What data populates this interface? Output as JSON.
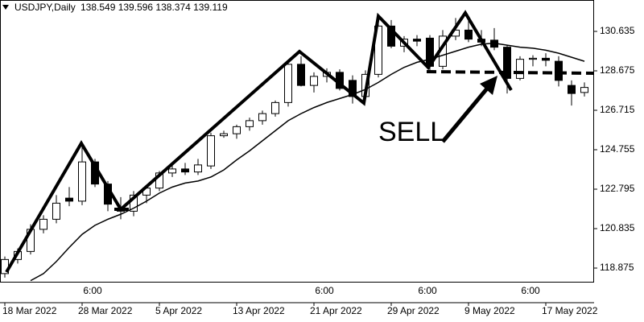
{
  "chart_data": {
    "type": "candlestick",
    "title": "USDJPY,Daily",
    "subtitle": "138.549 139.596 138.374 139.119",
    "categories": [
      "18 Mar 2022",
      null,
      null,
      null,
      null,
      null,
      "28 Mar 2022",
      null,
      null,
      null,
      null,
      null,
      "5 Apr 2022",
      null,
      null,
      null,
      null,
      null,
      "13 Apr 2022",
      null,
      null,
      null,
      null,
      null,
      "21 Apr 2022",
      null,
      null,
      null,
      null,
      null,
      "29 Apr 2022",
      null,
      null,
      null,
      null,
      null,
      "9 May 2022",
      null,
      null,
      null,
      null,
      null,
      "17 May 2022",
      null,
      null,
      null
    ],
    "open": [
      118.6,
      119.3,
      119.7,
      120.8,
      121.3,
      122.35,
      122.2,
      124.15,
      123.05,
      121.75,
      121.7,
      122.5,
      122.85,
      123.6,
      123.8,
      123.65,
      123.95,
      125.45,
      125.55,
      125.9,
      126.2,
      126.55,
      127.1,
      129.0,
      127.95,
      128.4,
      128.6,
      128.2,
      127.4,
      128.5,
      130.9,
      129.9,
      130.25,
      130.3,
      128.9,
      130.4,
      130.7,
      130.25,
      130.2,
      129.85,
      128.3,
      129.25,
      129.3,
      129.15,
      127.95,
      127.6
    ],
    "high": [
      119.45,
      119.85,
      121.05,
      121.5,
      122.5,
      122.9,
      125.1,
      124.3,
      123.2,
      122.4,
      122.7,
      123.0,
      123.7,
      124.0,
      124.1,
      124.3,
      125.6,
      125.7,
      126.0,
      126.35,
      126.7,
      127.2,
      129.1,
      129.4,
      128.6,
      128.8,
      128.75,
      128.45,
      128.7,
      131.25,
      131.2,
      130.4,
      130.45,
      130.45,
      130.7,
      131.3,
      131.3,
      130.7,
      130.8,
      129.95,
      129.4,
      129.45,
      129.55,
      129.4,
      128.2,
      128.1
    ],
    "low": [
      118.4,
      119.1,
      119.55,
      120.6,
      121.1,
      121.95,
      122.0,
      122.9,
      121.7,
      121.3,
      121.45,
      122.1,
      122.7,
      123.4,
      123.5,
      123.5,
      123.8,
      125.35,
      125.3,
      125.7,
      126.0,
      126.4,
      126.9,
      127.9,
      127.6,
      128.1,
      127.7,
      127.05,
      127.2,
      128.35,
      129.8,
      129.6,
      129.9,
      128.6,
      128.75,
      130.2,
      130.1,
      129.9,
      129.7,
      127.55,
      128.2,
      128.9,
      128.9,
      127.9,
      126.95,
      127.4
    ],
    "close": [
      119.3,
      119.7,
      120.8,
      121.3,
      122.1,
      122.2,
      124.15,
      123.05,
      122.05,
      121.7,
      122.5,
      122.85,
      123.6,
      123.8,
      123.65,
      124.0,
      125.45,
      125.55,
      125.9,
      126.2,
      126.55,
      127.1,
      129.0,
      127.95,
      128.4,
      128.6,
      127.8,
      127.4,
      128.5,
      130.9,
      129.9,
      130.25,
      130.15,
      128.9,
      130.4,
      130.7,
      130.25,
      130.1,
      129.85,
      128.3,
      129.25,
      129.3,
      129.2,
      128.2,
      127.55,
      127.85
    ],
    "ma": [
      null,
      null,
      118.25,
      118.6,
      119.2,
      119.9,
      120.55,
      121.0,
      121.3,
      121.55,
      121.85,
      122.2,
      122.6,
      122.9,
      123.1,
      123.2,
      123.4,
      123.75,
      124.25,
      124.7,
      125.2,
      125.7,
      126.2,
      126.55,
      126.85,
      127.1,
      127.3,
      127.5,
      127.75,
      128.1,
      128.5,
      128.85,
      129.1,
      129.25,
      129.45,
      129.65,
      129.85,
      130.0,
      130.05,
      129.95,
      129.85,
      129.8,
      129.7,
      129.55,
      129.35,
      129.15
    ],
    "up_color": "#ffffff",
    "down_color": "#000000",
    "ylim": [
      118.195,
      132.195
    ],
    "yticks": [
      118.875,
      120.835,
      122.795,
      124.755,
      126.715,
      128.675,
      130.635
    ],
    "time_labels": [
      "6:00",
      "6:00",
      "6:00",
      "6:00"
    ],
    "annotation": "SELL"
  }
}
